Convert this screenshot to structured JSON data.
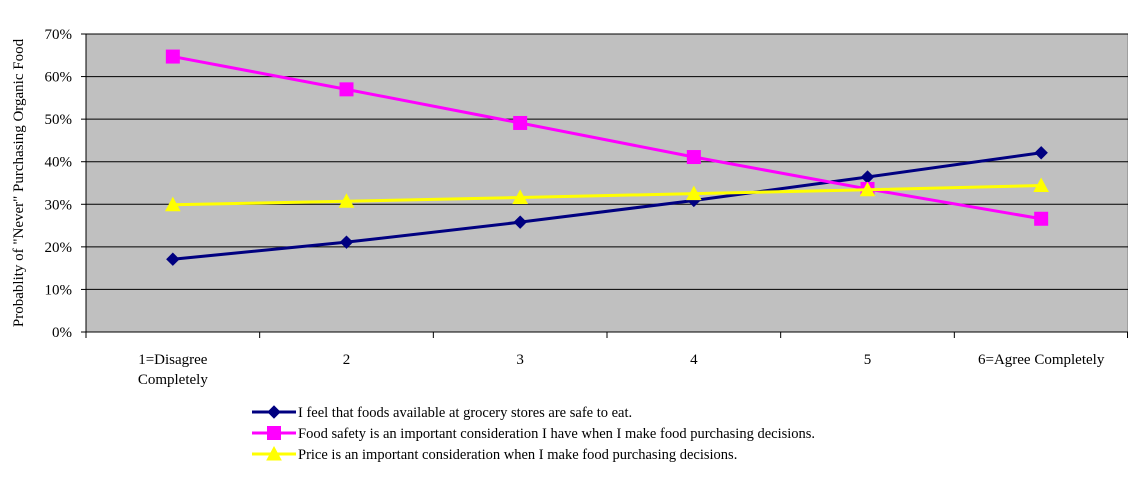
{
  "chart_data": {
    "type": "line",
    "title": "",
    "xlabel": "",
    "ylabel": "Probablity of \"Never\" Purchasing Organic Food",
    "categories": [
      "1=Disagree Completely",
      "2",
      "3",
      "4",
      "5",
      "6=Agree Completely"
    ],
    "category_lines": [
      [
        "1=Disagree",
        "Completely"
      ],
      [
        "2"
      ],
      [
        "3"
      ],
      [
        "4"
      ],
      [
        "5"
      ],
      [
        "6=Agree Completely"
      ]
    ],
    "ylim": [
      0,
      0.7
    ],
    "yticks": [
      0,
      0.1,
      0.2,
      0.3,
      0.4,
      0.5,
      0.6,
      0.7
    ],
    "ytick_labels": [
      "0%",
      "10%",
      "20%",
      "30%",
      "40%",
      "50%",
      "60%",
      "70%"
    ],
    "grid": true,
    "plot_background": "#c0c0c0",
    "legend_position": "bottom",
    "series": [
      {
        "name": "I feel that foods available at grocery stores are safe to eat.",
        "values": [
          0.171,
          0.211,
          0.258,
          0.309,
          0.364,
          0.421
        ],
        "color": "#000080",
        "marker": "diamond"
      },
      {
        "name": "Food safety is an important consideration I have when I make food purchasing decisions.",
        "values": [
          0.647,
          0.57,
          0.491,
          0.411,
          0.336,
          0.266
        ],
        "color": "#ff00ff",
        "marker": "square"
      },
      {
        "name": "Price is an important consideration when I make food purchasing decisions.",
        "values": [
          0.299,
          0.307,
          0.316,
          0.325,
          0.334,
          0.344
        ],
        "color": "#ffff00",
        "marker": "triangle"
      }
    ]
  }
}
